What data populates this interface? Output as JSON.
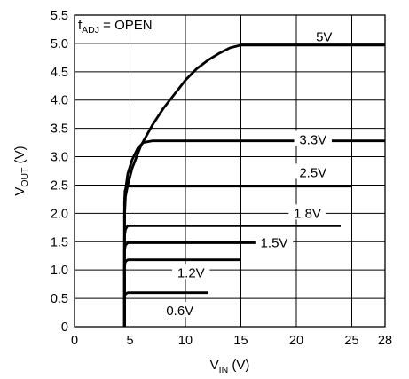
{
  "chart_data": {
    "type": "line",
    "title": "",
    "xlabel": {
      "main": "V",
      "sub": "IN",
      "unit": " (V)"
    },
    "ylabel": {
      "main": "V",
      "sub": "OUT",
      "unit": " (V)"
    },
    "annotation": {
      "main": "f",
      "sub": "ADJ",
      "rest": " = OPEN"
    },
    "x_axis": {
      "ticks": [
        0,
        5,
        10,
        15,
        20,
        25,
        28
      ],
      "tick_labels": [
        "0",
        "5",
        "10",
        "15",
        "20",
        "25",
        "28"
      ],
      "lim": [
        0,
        28
      ]
    },
    "y_axis": {
      "ticks": [
        0,
        0.5,
        1.0,
        1.5,
        2.0,
        2.5,
        3.0,
        3.5,
        4.0,
        4.5,
        5.0,
        5.5
      ],
      "tick_labels": [
        "0",
        "0.5",
        "1.0",
        "1.5",
        "2.0",
        "2.5",
        "3.0",
        "3.5",
        "4.0",
        "4.5",
        "5.0",
        "5.5"
      ],
      "lim": [
        0,
        5.5
      ]
    },
    "grid": true,
    "series": [
      {
        "name": "5V",
        "label_x": 22.5,
        "label_y": 5.12,
        "points": [
          [
            4.5,
            0
          ],
          [
            4.5,
            1.0
          ],
          [
            4.52,
            2.0
          ],
          [
            4.6,
            2.3
          ],
          [
            4.8,
            2.5
          ],
          [
            5.2,
            2.8
          ],
          [
            6,
            3.2
          ],
          [
            7,
            3.55
          ],
          [
            8,
            3.85
          ],
          [
            9,
            4.1
          ],
          [
            10,
            4.35
          ],
          [
            11,
            4.55
          ],
          [
            12,
            4.7
          ],
          [
            13,
            4.82
          ],
          [
            14,
            4.92
          ],
          [
            15,
            4.97
          ],
          [
            28,
            4.97
          ]
        ]
      },
      {
        "name": "3.3V",
        "label_x": 21.5,
        "label_y": 3.3,
        "points": [
          [
            4.5,
            0
          ],
          [
            4.5,
            2.0
          ],
          [
            4.55,
            2.35
          ],
          [
            4.8,
            2.7
          ],
          [
            5.2,
            2.95
          ],
          [
            5.7,
            3.15
          ],
          [
            6.2,
            3.25
          ],
          [
            7,
            3.28
          ],
          [
            28,
            3.28
          ]
        ]
      },
      {
        "name": "2.5V",
        "label_x": 21.5,
        "label_y": 2.72,
        "points": [
          [
            4.5,
            0
          ],
          [
            4.5,
            2.2
          ],
          [
            4.55,
            2.4
          ],
          [
            4.7,
            2.48
          ],
          [
            25,
            2.48
          ]
        ]
      },
      {
        "name": "1.8V",
        "label_x": 21.0,
        "label_y": 2.0,
        "points": [
          [
            4.5,
            0
          ],
          [
            4.5,
            1.6
          ],
          [
            4.6,
            1.72
          ],
          [
            4.8,
            1.78
          ],
          [
            24,
            1.78
          ]
        ]
      },
      {
        "name": "1.5V",
        "label_x": 18.0,
        "label_y": 1.48,
        "points": [
          [
            4.5,
            0
          ],
          [
            4.5,
            1.35
          ],
          [
            4.6,
            1.44
          ],
          [
            4.8,
            1.48
          ],
          [
            17.5,
            1.48
          ]
        ]
      },
      {
        "name": "1.2V",
        "label_x": 10.5,
        "label_y": 0.95,
        "points": [
          [
            4.5,
            0
          ],
          [
            4.5,
            1.08
          ],
          [
            4.6,
            1.15
          ],
          [
            4.8,
            1.18
          ],
          [
            15,
            1.18
          ]
        ]
      },
      {
        "name": "0.6V",
        "label_x": 9.5,
        "label_y": 0.28,
        "points": [
          [
            4.5,
            0
          ],
          [
            4.5,
            0.52
          ],
          [
            4.6,
            0.58
          ],
          [
            4.8,
            0.6
          ],
          [
            12,
            0.6
          ]
        ]
      }
    ]
  }
}
